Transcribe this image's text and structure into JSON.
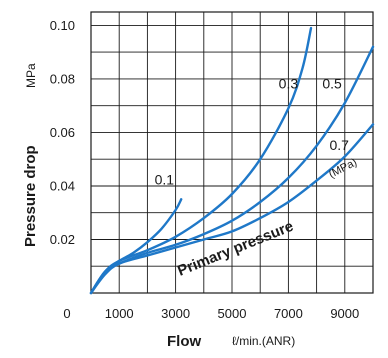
{
  "chart_data": {
    "type": "line",
    "xlabel": "Flow",
    "xunit": "ℓ/min.(ANR)",
    "ylabel": "Pressure drop",
    "yunit": "MPa",
    "xlim": [
      0,
      10000
    ],
    "ylim": [
      0,
      0.105
    ],
    "grid": true,
    "x_ticks": [
      0,
      1000,
      3000,
      5000,
      7000,
      9000
    ],
    "x_tick_labels": [
      "0",
      "1000",
      "3000",
      "5000",
      "7000",
      "9000"
    ],
    "y_ticks": [
      0.02,
      0.04,
      0.06,
      0.08,
      0.1
    ],
    "y_tick_labels": [
      "0.02",
      "0.04",
      "0.06",
      "0.08",
      "0.10"
    ],
    "series_color": "#1f78c8",
    "series": [
      {
        "name": "0.1",
        "x": [
          0,
          300,
          600,
          1000,
          1500,
          2000,
          2500,
          3000,
          3200
        ],
        "y": [
          0,
          0.005,
          0.009,
          0.012,
          0.015,
          0.019,
          0.024,
          0.031,
          0.035
        ]
      },
      {
        "name": "0.3",
        "x": [
          0,
          500,
          1000,
          2000,
          3000,
          4000,
          5000,
          6000,
          7000,
          7500,
          7800
        ],
        "y": [
          0,
          0.008,
          0.012,
          0.016,
          0.021,
          0.028,
          0.037,
          0.05,
          0.069,
          0.084,
          0.099
        ]
      },
      {
        "name": "0.5",
        "x": [
          0,
          500,
          1000,
          2000,
          3000,
          4000,
          5000,
          6000,
          7000,
          8000,
          9000,
          10000
        ],
        "y": [
          0,
          0.008,
          0.011,
          0.015,
          0.018,
          0.022,
          0.027,
          0.034,
          0.043,
          0.055,
          0.071,
          0.092
        ]
      },
      {
        "name": "0.7",
        "x": [
          0,
          500,
          1000,
          2000,
          3000,
          4000,
          5000,
          6000,
          7000,
          8000,
          9000,
          10000
        ],
        "y": [
          0,
          0.007,
          0.011,
          0.014,
          0.017,
          0.02,
          0.023,
          0.028,
          0.034,
          0.042,
          0.051,
          0.063
        ]
      }
    ],
    "curve_labels": [
      {
        "text": "0.1",
        "x": 2600,
        "y": 0.0405
      },
      {
        "text": "0.3",
        "x": 7000,
        "y": 0.0765
      },
      {
        "text": "0.5",
        "x": 8550,
        "y": 0.0765
      },
      {
        "text": "0.7",
        "x": 8800,
        "y": 0.0535
      }
    ],
    "unit_note": "(MPa)",
    "annotation": "Primary pressure"
  }
}
